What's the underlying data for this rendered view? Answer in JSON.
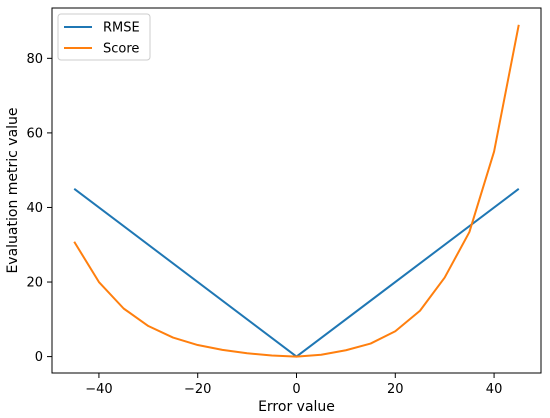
{
  "chart_data": {
    "type": "line",
    "title": "",
    "xlabel": "Error value",
    "ylabel": "Evaluation metric value",
    "xlim": [
      -49.5,
      49.5
    ],
    "ylim": [
      -4.4,
      93.5
    ],
    "xticks": [
      -40,
      -20,
      0,
      20,
      40
    ],
    "yticks": [
      0,
      20,
      40,
      60,
      80
    ],
    "xtick_labels": [
      "−40",
      "−20",
      "0",
      "20",
      "40"
    ],
    "ytick_labels": [
      "0",
      "20",
      "40",
      "60",
      "80"
    ],
    "grid": false,
    "legend_position": "top-left",
    "series": [
      {
        "name": "RMSE",
        "color": "#1f77b4",
        "x": [
          -45,
          0,
          45
        ],
        "y": [
          45,
          0,
          45
        ]
      },
      {
        "name": "Score",
        "color": "#ff7f0e",
        "x": [
          -45,
          -40,
          -35,
          -30,
          -25,
          -20,
          -15,
          -10,
          -5,
          0,
          5,
          10,
          15,
          20,
          25,
          30,
          35,
          40,
          45
        ],
        "y": [
          30.8,
          20.0,
          12.9,
          8.2,
          5.1,
          3.1,
          1.8,
          0.9,
          0.3,
          0.0,
          0.5,
          1.7,
          3.5,
          6.8,
          12.3,
          21.2,
          33.4,
          55.0,
          89.0
        ]
      }
    ]
  }
}
